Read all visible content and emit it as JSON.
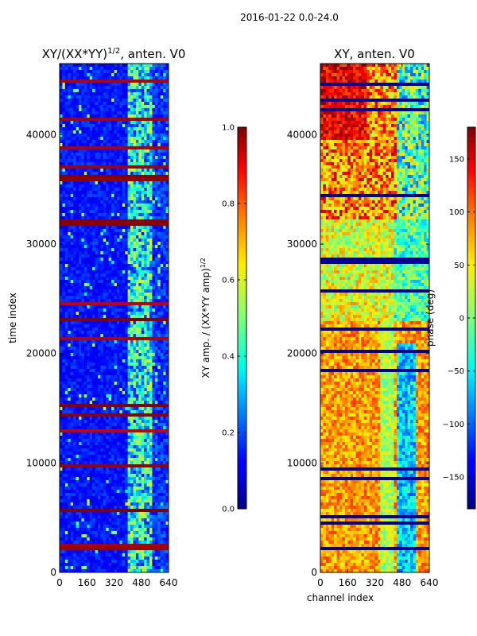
{
  "figure_title": "2016-01-22 0.0-24.0",
  "chart_data": [
    {
      "type": "heatmap",
      "title": "XY/(XX*YY)",
      "title_exponent": "1/2",
      "title_suffix": ", anten. V0",
      "xlabel": "",
      "ylabel": "time index",
      "xlim": [
        0,
        640
      ],
      "ylim": [
        0,
        46500
      ],
      "xticks": [
        "0",
        "160",
        "320",
        "480",
        "640"
      ],
      "yticks": [
        "0",
        "10000",
        "20000",
        "30000",
        "40000"
      ],
      "colormap": "jet",
      "colorbar": {
        "label": "XY amp. / (XX*YY amp)",
        "label_exponent": "1/2",
        "range": [
          0.0,
          1.0
        ],
        "ticks": [
          "0.0",
          "0.2",
          "0.4",
          "0.6",
          "0.8",
          "1.0"
        ]
      }
    },
    {
      "type": "heatmap",
      "title": "XY, anten. V0",
      "xlabel": "channel index",
      "ylabel": "",
      "xlim": [
        0,
        640
      ],
      "ylim": [
        0,
        46500
      ],
      "xticks": [
        "0",
        "160",
        "320",
        "480",
        "640"
      ],
      "yticks": [
        "0",
        "10000",
        "20000",
        "30000",
        "40000"
      ],
      "colormap": "jet",
      "colorbar": {
        "label": "phase (deg)",
        "range": [
          -180,
          180
        ],
        "ticks": [
          "−150",
          "−100",
          "−50",
          "0",
          "50",
          "100",
          "150"
        ]
      }
    }
  ]
}
